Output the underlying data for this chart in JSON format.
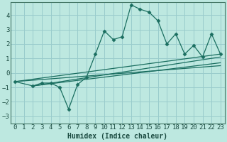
{
  "xlabel": "Humidex (Indice chaleur)",
  "ylabel": "",
  "bg_color": "#bde8e0",
  "grid_color": "#99cccc",
  "line_color": "#1a6e60",
  "xlim": [
    -0.5,
    23.5
  ],
  "ylim": [
    -3.5,
    4.9
  ],
  "yticks": [
    -3,
    -2,
    -1,
    0,
    1,
    2,
    3,
    4
  ],
  "xticks": [
    0,
    1,
    2,
    3,
    4,
    5,
    6,
    7,
    8,
    9,
    10,
    11,
    12,
    13,
    14,
    15,
    16,
    17,
    18,
    19,
    20,
    21,
    22,
    23
  ],
  "main_x": [
    0,
    2,
    3,
    4,
    5,
    6,
    7,
    8,
    9,
    10,
    11,
    12,
    13,
    14,
    15,
    16,
    17,
    18,
    19,
    20,
    21,
    22,
    23
  ],
  "main_y": [
    -0.6,
    -0.9,
    -0.7,
    -0.7,
    -1.0,
    -2.5,
    -0.8,
    -0.3,
    1.3,
    2.9,
    2.3,
    2.5,
    4.7,
    4.4,
    4.2,
    3.6,
    2.0,
    2.7,
    1.3,
    1.9,
    1.1,
    2.7,
    1.3
  ],
  "straight_lines": [
    {
      "x": [
        0,
        23
      ],
      "y": [
        -0.6,
        1.3
      ]
    },
    {
      "x": [
        0,
        23
      ],
      "y": [
        -0.6,
        0.5
      ]
    },
    {
      "x": [
        2,
        23
      ],
      "y": [
        -0.9,
        0.7
      ]
    },
    {
      "x": [
        2,
        23
      ],
      "y": [
        -0.9,
        1.1
      ]
    }
  ]
}
